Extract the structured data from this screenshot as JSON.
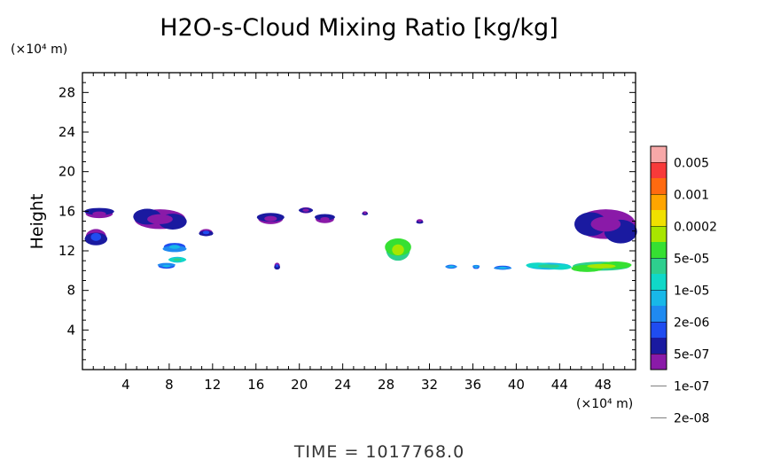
{
  "chart_data": {
    "type": "heatmap",
    "title": "H2O-s-Cloud Mixing Ratio [kg/kg]",
    "ylabel": "Height",
    "y_unit": "(×10⁴ m)",
    "x_unit": "(×10⁴ m)",
    "xlim": [
      0,
      51
    ],
    "ylim": [
      0,
      30
    ],
    "xticks": [
      4,
      8,
      12,
      16,
      20,
      24,
      28,
      32,
      36,
      40,
      44,
      48
    ],
    "yticks": [
      4,
      8,
      12,
      16,
      20,
      24,
      28
    ],
    "grid": false,
    "colorbar": {
      "labels": [
        "0.005",
        "0.001",
        "0.0002",
        "5e-05",
        "1e-05",
        "2e-06",
        "5e-07",
        "1e-07",
        "2e-08"
      ],
      "colors": [
        "#f7a8a8",
        "#f83a3a",
        "#ff6a10",
        "#ffa500",
        "#f0e000",
        "#a8e600",
        "#36e032",
        "#2ecf8e",
        "#10d8c8",
        "#18b8e8",
        "#1f8af0",
        "#1f4cf0",
        "#1a1aa0",
        "#8a1aa8"
      ]
    },
    "cloud_regions": [
      {
        "x": [
          0.3,
          2.8
        ],
        "y": [
          15.3,
          16.2
        ],
        "level": "1e-07"
      },
      {
        "x": [
          0.3,
          2.2
        ],
        "y": [
          12.6,
          14.2
        ],
        "level": "2e-06"
      },
      {
        "x": [
          4.8,
          9.5
        ],
        "y": [
          14.2,
          16.2
        ],
        "level": "5e-07"
      },
      {
        "x": [
          7.5,
          9.5
        ],
        "y": [
          12.0,
          12.8
        ],
        "level": "1e-05"
      },
      {
        "x": [
          8.0,
          9.5
        ],
        "y": [
          10.8,
          11.4
        ],
        "level": "5e-05"
      },
      {
        "x": [
          7.0,
          8.5
        ],
        "y": [
          10.2,
          10.7
        ],
        "level": "1e-05"
      },
      {
        "x": [
          10.8,
          12.0
        ],
        "y": [
          13.5,
          14.2
        ],
        "level": "2e-06"
      },
      {
        "x": [
          16.2,
          18.5
        ],
        "y": [
          14.7,
          15.8
        ],
        "level": "5e-07"
      },
      {
        "x": [
          17.7,
          18.2
        ],
        "y": [
          10.2,
          10.8
        ],
        "level": "2e-06"
      },
      {
        "x": [
          20.0,
          21.2
        ],
        "y": [
          15.8,
          16.4
        ],
        "level": "1e-07"
      },
      {
        "x": [
          21.5,
          23.2
        ],
        "y": [
          14.8,
          15.6
        ],
        "level": "5e-07"
      },
      {
        "x": [
          25.8,
          26.3
        ],
        "y": [
          15.6,
          16.0
        ],
        "level": "1e-07"
      },
      {
        "x": [
          28.0,
          30.2
        ],
        "y": [
          11.0,
          13.2
        ],
        "level": "0.0002"
      },
      {
        "x": [
          30.8,
          31.4
        ],
        "y": [
          14.8,
          15.2
        ],
        "level": "5e-07"
      },
      {
        "x": [
          33.5,
          34.5
        ],
        "y": [
          10.2,
          10.6
        ],
        "level": "1e-05"
      },
      {
        "x": [
          36.0,
          36.6
        ],
        "y": [
          10.2,
          10.5
        ],
        "level": "1e-05"
      },
      {
        "x": [
          38.0,
          39.5
        ],
        "y": [
          10.1,
          10.5
        ],
        "level": "1e-05"
      },
      {
        "x": [
          41.0,
          45.0
        ],
        "y": [
          10.1,
          10.8
        ],
        "level": "5e-05"
      },
      {
        "x": [
          45.2,
          50.5
        ],
        "y": [
          10.0,
          10.9
        ],
        "level": "0.0002"
      },
      {
        "x": [
          45.5,
          51.0
        ],
        "y": [
          13.2,
          16.2
        ],
        "level": "5e-07"
      }
    ]
  },
  "footer": {
    "time_text": "TIME = 1017768.0"
  }
}
